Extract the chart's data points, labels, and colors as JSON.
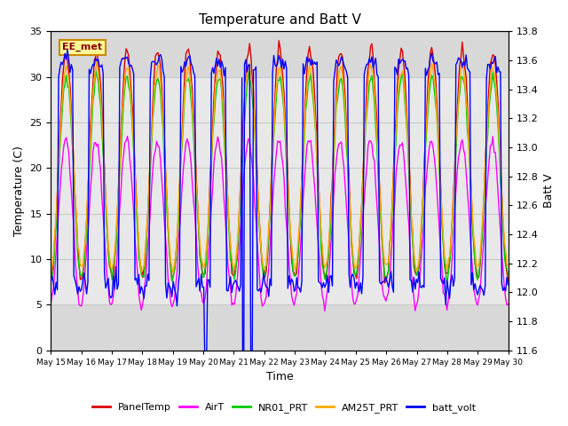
{
  "title": "Temperature and Batt V",
  "xlabel": "Time",
  "ylabel_left": "Temperature (C)",
  "ylabel_right": "Batt V",
  "annotation": "EE_met",
  "xlim_days": [
    15,
    30
  ],
  "ylim_left": [
    0,
    35
  ],
  "ylim_right": [
    11.6,
    13.8
  ],
  "x_tick_labels": [
    "May 15",
    "May 16",
    "May 17",
    "May 18",
    "May 19",
    "May 20",
    "May 21",
    "May 22",
    "May 23",
    "May 24",
    "May 25",
    "May 26",
    "May 27",
    "May 28",
    "May 29",
    "May 30"
  ],
  "series_colors": {
    "PanelTemp": "#dd0000",
    "AirT": "#ff00ff",
    "NR01_PRT": "#00cc00",
    "AM25T_PRT": "#ffaa00",
    "batt_volt": "#0000ff"
  },
  "legend_colors": [
    "#dd0000",
    "#ff00ff",
    "#00cc00",
    "#ffaa00",
    "#0000ff"
  ],
  "legend_labels": [
    "PanelTemp",
    "AirT",
    "NR01_PRT",
    "AM25T_PRT",
    "batt_volt"
  ],
  "grid_color": "#c8c8c8",
  "plot_bg_color": "#d8d8d8",
  "band_color": "#e8e8e8",
  "shaded_ymin": 5,
  "shaded_ymax": 30,
  "left_yticks": [
    0,
    5,
    10,
    15,
    20,
    25,
    30,
    35
  ],
  "right_yticks": [
    11.6,
    11.8,
    12.0,
    12.2,
    12.4,
    12.6,
    12.8,
    13.0,
    13.2,
    13.4,
    13.6,
    13.8
  ],
  "n_days": 15,
  "hours_per_day": 24,
  "random_seed": 42
}
